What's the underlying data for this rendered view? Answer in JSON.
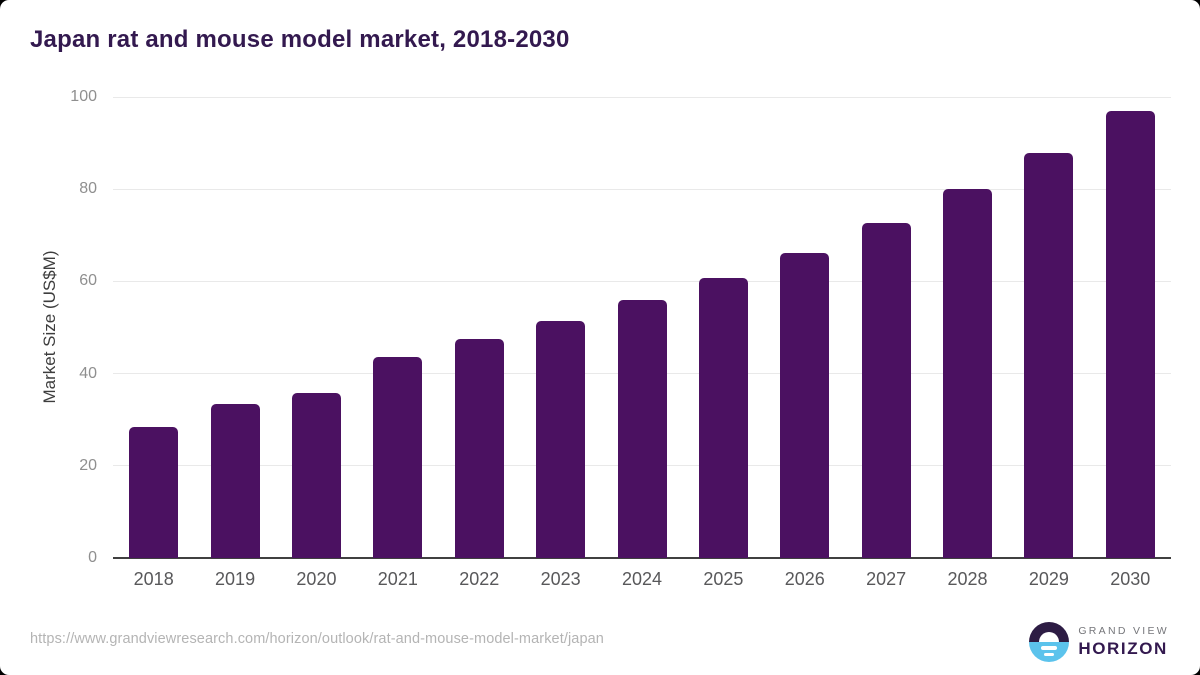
{
  "title": "Japan rat and mouse model market, 2018-2030",
  "chart_data": {
    "type": "bar",
    "title": "Japan rat and mouse model market, 2018-2030",
    "categories": [
      "2018",
      "2019",
      "2020",
      "2021",
      "2022",
      "2023",
      "2024",
      "2025",
      "2026",
      "2027",
      "2028",
      "2029",
      "2030"
    ],
    "values": [
      28.4,
      33.4,
      35.8,
      43.6,
      47.5,
      51.4,
      56.0,
      60.7,
      66.2,
      72.7,
      80.0,
      87.9,
      97.0
    ],
    "xlabel": "",
    "ylabel": "Market Size (US$M)",
    "ylim": [
      0,
      100
    ],
    "yticks": [
      0,
      20,
      40,
      60,
      80,
      100
    ],
    "grid": "horizontal-only",
    "legend": "none",
    "bar_color": "#4b1161"
  },
  "footer": {
    "source_url": "https://www.grandviewresearch.com/horizon/outlook/rat-and-mouse-model-market/japan",
    "logo": {
      "brand_top": "GRAND VIEW",
      "brand_bottom": "HORIZON",
      "icon": "sunrise-horizon-circle-icon"
    }
  },
  "colors": {
    "bar_fill": "#4b1161",
    "title_text": "#33194f",
    "axis_title_text": "#3d3d3d",
    "tick_label_text": "#8f8f8f",
    "x_label_text": "#58585a",
    "gridline": "#e9e9e9",
    "baseline": "#404040",
    "url_text": "#b4b4b4",
    "logo_dark": "#2d1c44",
    "logo_blue": "#5cc3ec",
    "brand_top_text": "#75767a",
    "brand_bottom_text": "#33194f",
    "background": "#ffffff"
  }
}
